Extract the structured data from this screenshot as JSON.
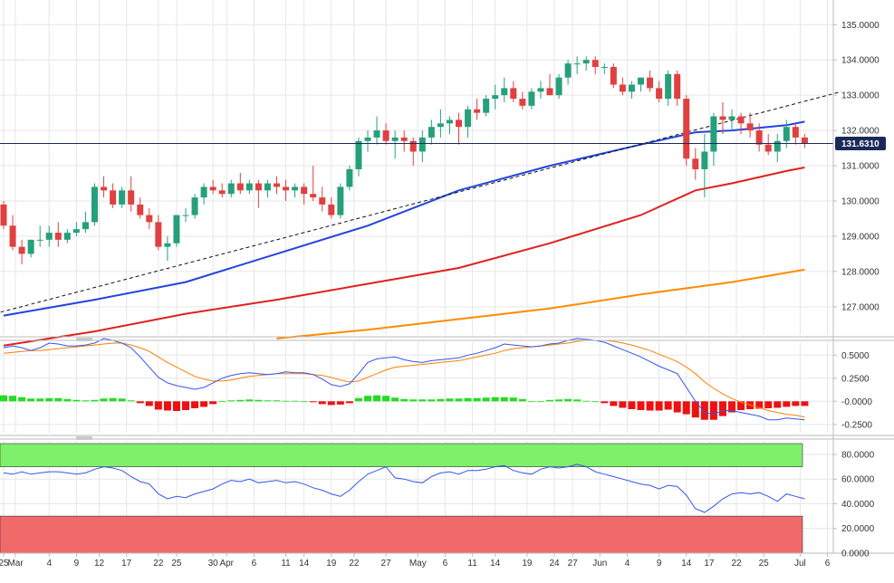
{
  "chart_data": [
    {
      "type": "candlestick",
      "panel": "price",
      "ylim": [
        126.2,
        135.7
      ],
      "yticks": [
        "135.0000",
        "134.0000",
        "133.0000",
        "132.0000",
        "131.0000",
        "130.0000",
        "129.0000",
        "128.0000",
        "127.0000"
      ],
      "ytick_values": [
        135,
        134,
        133,
        132,
        131,
        130,
        129,
        128,
        127
      ],
      "current_price": 131.631,
      "current_price_label": "131.6310",
      "grid": true,
      "candles": [
        [
          129.9,
          130.0,
          129.2,
          129.3
        ],
        [
          129.3,
          129.6,
          128.6,
          128.7
        ],
        [
          128.7,
          128.9,
          128.2,
          128.5
        ],
        [
          128.5,
          128.9,
          128.4,
          128.9
        ],
        [
          128.9,
          129.3,
          128.7,
          128.9
        ],
        [
          128.9,
          129.3,
          128.7,
          129.1
        ],
        [
          129.1,
          129.4,
          128.7,
          128.9
        ],
        [
          128.9,
          129.2,
          128.8,
          129.1
        ],
        [
          129.1,
          129.4,
          129.0,
          129.2
        ],
        [
          129.2,
          129.7,
          129.1,
          129.4
        ],
        [
          129.4,
          130.5,
          129.3,
          130.4
        ],
        [
          130.4,
          130.7,
          130.1,
          130.3
        ],
        [
          130.3,
          130.5,
          129.8,
          129.9
        ],
        [
          129.9,
          130.4,
          129.8,
          130.3
        ],
        [
          130.3,
          130.7,
          129.7,
          129.9
        ],
        [
          129.9,
          130.1,
          129.5,
          129.6
        ],
        [
          129.6,
          129.8,
          129.2,
          129.4
        ],
        [
          129.4,
          129.6,
          128.6,
          128.7
        ],
        [
          128.7,
          129.0,
          128.3,
          128.8
        ],
        [
          128.8,
          129.6,
          128.7,
          129.6
        ],
        [
          129.6,
          129.8,
          129.4,
          129.6
        ],
        [
          129.6,
          130.2,
          129.5,
          130.1
        ],
        [
          130.1,
          130.5,
          129.9,
          130.4
        ],
        [
          130.4,
          130.6,
          130.2,
          130.3
        ],
        [
          130.3,
          130.5,
          130.1,
          130.2
        ],
        [
          130.2,
          130.6,
          130.1,
          130.5
        ],
        [
          130.5,
          130.8,
          130.2,
          130.3
        ],
        [
          130.3,
          130.6,
          130.2,
          130.5
        ],
        [
          130.5,
          130.6,
          129.8,
          130.3
        ],
        [
          130.3,
          130.6,
          130.1,
          130.5
        ],
        [
          130.5,
          130.7,
          130.2,
          130.4
        ],
        [
          130.4,
          130.6,
          130.0,
          130.3
        ],
        [
          130.3,
          130.5,
          130.1,
          130.4
        ],
        [
          130.4,
          130.5,
          129.9,
          130.2
        ],
        [
          130.2,
          131.0,
          130.0,
          130.1
        ],
        [
          130.1,
          130.4,
          129.7,
          129.9
        ],
        [
          129.9,
          130.1,
          129.5,
          129.6
        ],
        [
          129.6,
          130.5,
          129.5,
          130.4
        ],
        [
          130.4,
          131.0,
          130.3,
          130.9
        ],
        [
          130.9,
          131.8,
          130.7,
          131.7
        ],
        [
          131.7,
          132.0,
          131.4,
          131.8
        ],
        [
          131.8,
          132.4,
          131.6,
          132.0
        ],
        [
          132.0,
          132.2,
          131.6,
          131.7
        ],
        [
          131.7,
          132.0,
          131.2,
          131.8
        ],
        [
          131.8,
          132.0,
          131.4,
          131.7
        ],
        [
          131.7,
          131.8,
          131.0,
          131.4
        ],
        [
          131.4,
          132.0,
          131.1,
          131.8
        ],
        [
          131.8,
          132.3,
          131.6,
          132.1
        ],
        [
          132.1,
          132.6,
          131.8,
          132.2
        ],
        [
          132.2,
          132.4,
          131.9,
          132.3
        ],
        [
          132.3,
          132.5,
          131.6,
          132.1
        ],
        [
          132.1,
          132.7,
          131.8,
          132.6
        ],
        [
          132.6,
          132.9,
          132.3,
          132.5
        ],
        [
          132.5,
          133.0,
          132.4,
          132.9
        ],
        [
          132.9,
          133.3,
          132.6,
          133.0
        ],
        [
          133.0,
          133.5,
          132.8,
          133.2
        ],
        [
          133.2,
          133.4,
          132.8,
          132.9
        ],
        [
          132.9,
          133.1,
          132.6,
          132.7
        ],
        [
          132.7,
          133.2,
          132.6,
          133.1
        ],
        [
          133.1,
          133.4,
          132.9,
          133.2
        ],
        [
          133.2,
          133.6,
          133.0,
          133.0
        ],
        [
          133.0,
          133.6,
          132.9,
          133.5
        ],
        [
          133.5,
          134.0,
          133.3,
          133.9
        ],
        [
          133.9,
          134.1,
          133.6,
          133.9
        ],
        [
          133.9,
          134.1,
          133.7,
          134.0
        ],
        [
          134.0,
          134.1,
          133.6,
          133.8
        ],
        [
          133.8,
          133.9,
          133.6,
          133.8
        ],
        [
          133.8,
          133.9,
          133.2,
          133.3
        ],
        [
          133.3,
          133.5,
          133.0,
          133.1
        ],
        [
          133.1,
          133.4,
          132.9,
          133.3
        ],
        [
          133.3,
          133.5,
          133.1,
          133.5
        ],
        [
          133.5,
          133.7,
          133.1,
          133.2
        ],
        [
          133.2,
          133.4,
          132.8,
          132.9
        ],
        [
          132.9,
          133.7,
          132.7,
          133.6
        ],
        [
          133.6,
          133.7,
          132.7,
          132.9
        ],
        [
          132.9,
          133.0,
          131.0,
          131.2
        ],
        [
          131.2,
          131.5,
          130.6,
          130.9
        ],
        [
          130.9,
          131.9,
          130.1,
          131.4
        ],
        [
          131.4,
          132.5,
          131.0,
          132.4
        ],
        [
          132.4,
          132.8,
          131.9,
          132.3
        ],
        [
          132.3,
          132.6,
          132.0,
          132.4
        ],
        [
          132.4,
          132.5,
          131.9,
          132.2
        ],
        [
          132.2,
          132.5,
          131.8,
          132.0
        ],
        [
          132.0,
          132.2,
          131.4,
          131.6
        ],
        [
          131.6,
          131.9,
          131.3,
          131.4
        ],
        [
          131.4,
          131.9,
          131.1,
          131.7
        ],
        [
          131.7,
          132.3,
          131.5,
          132.1
        ],
        [
          132.1,
          132.2,
          131.6,
          131.8
        ],
        [
          131.8,
          131.9,
          131.5,
          131.631
        ]
      ],
      "series": [
        {
          "kind": "moving-average",
          "color": "#2244dd",
          "points": [
            [
              0,
              126.75
            ],
            [
              10,
              127.2
            ],
            [
              20,
              127.7
            ],
            [
              30,
              128.5
            ],
            [
              40,
              129.3
            ],
            [
              50,
              130.3
            ],
            [
              60,
              131.0
            ],
            [
              70,
              131.6
            ],
            [
              76,
              131.95
            ],
            [
              80,
              132.0
            ],
            [
              86,
              132.15
            ],
            [
              88,
              132.25
            ]
          ]
        },
        {
          "kind": "moving-average",
          "color": "#e02020",
          "points": [
            [
              0,
              125.9
            ],
            [
              10,
              126.3
            ],
            [
              20,
              126.8
            ],
            [
              30,
              127.2
            ],
            [
              40,
              127.65
            ],
            [
              50,
              128.1
            ],
            [
              60,
              128.8
            ],
            [
              70,
              129.6
            ],
            [
              76,
              130.3
            ],
            [
              80,
              130.5
            ],
            [
              86,
              130.85
            ],
            [
              88,
              130.95
            ]
          ]
        },
        {
          "kind": "moving-average",
          "color": "#ff8c00",
          "points": [
            [
              30,
              126.1
            ],
            [
              40,
              126.35
            ],
            [
              50,
              126.65
            ],
            [
              60,
              126.95
            ],
            [
              70,
              127.35
            ],
            [
              80,
              127.7
            ],
            [
              88,
              128.05
            ]
          ]
        },
        {
          "kind": "trendline",
          "color": "#111111",
          "dashed": true,
          "points": [
            [
              -1,
              126.8
            ],
            [
              92,
              133.1
            ]
          ]
        }
      ]
    },
    {
      "type": "line+bar",
      "panel": "macd",
      "ylim": [
        -0.34,
        0.64
      ],
      "yticks": [
        "0.5000",
        "0.2500",
        "-0.0000",
        "-0.2500"
      ],
      "ytick_values": [
        0.5,
        0.25,
        0,
        -0.25
      ],
      "macd": [
        0.58,
        0.6,
        0.58,
        0.55,
        0.58,
        0.63,
        0.62,
        0.6,
        0.6,
        0.61,
        0.63,
        0.68,
        0.66,
        0.63,
        0.58,
        0.48,
        0.37,
        0.26,
        0.2,
        0.17,
        0.15,
        0.13,
        0.15,
        0.2,
        0.25,
        0.28,
        0.3,
        0.31,
        0.3,
        0.29,
        0.3,
        0.32,
        0.31,
        0.31,
        0.29,
        0.24,
        0.18,
        0.16,
        0.19,
        0.3,
        0.42,
        0.46,
        0.47,
        0.48,
        0.45,
        0.43,
        0.42,
        0.44,
        0.45,
        0.46,
        0.47,
        0.5,
        0.52,
        0.55,
        0.58,
        0.62,
        0.61,
        0.6,
        0.59,
        0.6,
        0.62,
        0.63,
        0.66,
        0.68,
        0.67,
        0.66,
        0.64,
        0.6,
        0.56,
        0.52,
        0.48,
        0.43,
        0.38,
        0.34,
        0.3,
        0.15,
        0.0,
        -0.12,
        -0.14,
        -0.1,
        -0.1,
        -0.12,
        -0.14,
        -0.16,
        -0.2,
        -0.2,
        -0.18,
        -0.19,
        -0.2
      ],
      "signal": [
        0.52,
        0.53,
        0.54,
        0.55,
        0.55,
        0.56,
        0.57,
        0.58,
        0.59,
        0.6,
        0.61,
        0.62,
        0.63,
        0.63,
        0.61,
        0.58,
        0.54,
        0.48,
        0.42,
        0.37,
        0.32,
        0.27,
        0.24,
        0.22,
        0.22,
        0.23,
        0.25,
        0.27,
        0.28,
        0.29,
        0.3,
        0.3,
        0.3,
        0.3,
        0.29,
        0.28,
        0.26,
        0.23,
        0.21,
        0.22,
        0.26,
        0.3,
        0.34,
        0.37,
        0.38,
        0.39,
        0.4,
        0.41,
        0.42,
        0.43,
        0.44,
        0.46,
        0.48,
        0.5,
        0.52,
        0.55,
        0.57,
        0.58,
        0.59,
        0.6,
        0.61,
        0.62,
        0.63,
        0.65,
        0.66,
        0.66,
        0.66,
        0.65,
        0.63,
        0.61,
        0.58,
        0.55,
        0.51,
        0.47,
        0.43,
        0.37,
        0.3,
        0.21,
        0.14,
        0.08,
        0.03,
        -0.01,
        -0.04,
        -0.07,
        -0.1,
        -0.12,
        -0.14,
        -0.15,
        -0.17
      ],
      "histogram": [
        0.065,
        0.06,
        0.045,
        0.03,
        0.03,
        0.035,
        0.035,
        0.025,
        0.015,
        0.01,
        0.015,
        0.03,
        0.035,
        0.03,
        0.01,
        -0.02,
        -0.05,
        -0.09,
        -0.1,
        -0.105,
        -0.095,
        -0.075,
        -0.06,
        -0.03,
        0.0,
        0.01,
        0.015,
        0.02,
        0.015,
        0.01,
        0.01,
        0.005,
        0.005,
        0.0,
        -0.01,
        -0.03,
        -0.04,
        -0.035,
        -0.02,
        0.035,
        0.06,
        0.065,
        0.06,
        0.04,
        0.025,
        0.02,
        0.02,
        0.02,
        0.025,
        0.03,
        0.03,
        0.035,
        0.035,
        0.04,
        0.045,
        0.045,
        0.04,
        0.025,
        0.0,
        0.0,
        0.015,
        0.02,
        0.025,
        0.02,
        0.005,
        0.0,
        -0.02,
        -0.05,
        -0.07,
        -0.085,
        -0.095,
        -0.1,
        -0.1,
        -0.09,
        -0.12,
        -0.14,
        -0.175,
        -0.2,
        -0.2,
        -0.16,
        -0.12,
        -0.095,
        -0.085,
        -0.08,
        -0.075,
        -0.07,
        -0.06,
        -0.05,
        -0.05
      ]
    },
    {
      "type": "line",
      "panel": "rsi",
      "ylim": [
        0,
        91
      ],
      "yticks": [
        "80.0000",
        "60.0000",
        "40.0000",
        "20.0000",
        "0.0000"
      ],
      "ytick_values": [
        80,
        60,
        40,
        20,
        0
      ],
      "overbought_band": [
        70,
        100
      ],
      "oversold_band": [
        0,
        30
      ],
      "overbought_color": "#7ef06a",
      "oversold_color": "#f06a6a",
      "values": [
        65,
        64,
        66,
        64,
        65,
        66,
        66,
        65,
        64,
        65,
        68,
        70,
        69,
        67,
        62,
        58,
        56,
        48,
        44,
        46,
        45,
        48,
        50,
        52,
        56,
        59,
        58,
        60,
        57,
        58,
        59,
        57,
        58,
        56,
        53,
        51,
        48,
        46,
        51,
        58,
        64,
        67,
        70,
        61,
        60,
        58,
        57,
        62,
        65,
        66,
        64,
        67,
        67,
        68,
        70,
        71,
        67,
        65,
        64,
        68,
        70,
        69,
        70,
        72,
        70,
        66,
        64,
        62,
        60,
        58,
        56,
        55,
        52,
        55,
        54,
        47,
        36,
        33,
        38,
        44,
        48,
        49,
        48,
        49,
        46,
        42,
        48,
        46,
        44
      ]
    }
  ],
  "x_axis": {
    "labels": [
      {
        "text": "25",
        "i": 0
      },
      {
        "text": "Mar",
        "i": 1.3
      },
      {
        "text": "4",
        "i": 5
      },
      {
        "text": "9",
        "i": 8
      },
      {
        "text": "12",
        "i": 10.5
      },
      {
        "text": "17",
        "i": 13.5
      },
      {
        "text": "22",
        "i": 17
      },
      {
        "text": "25",
        "i": 19
      },
      {
        "text": "30",
        "i": 23
      },
      {
        "text": "Apr",
        "i": 24.5
      },
      {
        "text": "6",
        "i": 27.5
      },
      {
        "text": "11",
        "i": 31
      },
      {
        "text": "14",
        "i": 33
      },
      {
        "text": "19",
        "i": 36
      },
      {
        "text": "22",
        "i": 38.5
      },
      {
        "text": "27",
        "i": 42
      },
      {
        "text": "May",
        "i": 45.5
      },
      {
        "text": "6",
        "i": 48.5
      },
      {
        "text": "11",
        "i": 51.5
      },
      {
        "text": "14",
        "i": 54
      },
      {
        "text": "19",
        "i": 57.5
      },
      {
        "text": "24",
        "i": 60.5
      },
      {
        "text": "27",
        "i": 62.5
      },
      {
        "text": "Jun",
        "i": 65.5
      },
      {
        "text": "4",
        "i": 68.5
      },
      {
        "text": "9",
        "i": 72
      },
      {
        "text": "14",
        "i": 75
      },
      {
        "text": "17",
        "i": 77.5
      },
      {
        "text": "22",
        "i": 80.5
      },
      {
        "text": "25",
        "i": 83.5
      },
      {
        "text": "Jul",
        "i": 87.5
      },
      {
        "text": "6",
        "i": 90.5
      }
    ]
  },
  "colors": {
    "bull": "#26a07a",
    "bear": "#e04040",
    "axis": "#bbbbbb",
    "grid": "#e6e6e6",
    "price_line": "#1a2a5a",
    "label_bg": "#1a2a5a",
    "macd": "#3355ee",
    "signal": "#ff7f00",
    "hist_pos": "#22dd22",
    "hist_neg": "#ee1111",
    "rsi": "#3355ee"
  }
}
